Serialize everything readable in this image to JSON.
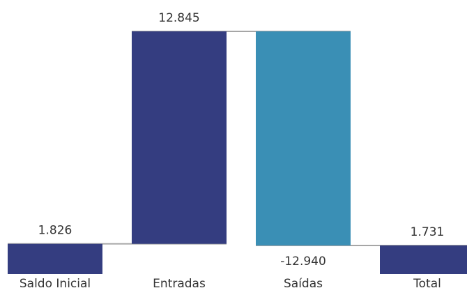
{
  "chart_data": {
    "type": "waterfall",
    "title": "",
    "xlabel": "",
    "ylabel": "",
    "categories": [
      "Saldo Inicial",
      "Entradas",
      "Saídas",
      "Total"
    ],
    "values": [
      1826,
      12845,
      -12940,
      1731
    ],
    "value_labels": [
      "1.826",
      "12.845",
      "-12.940",
      "1.731"
    ],
    "bar_kinds": [
      "total",
      "delta",
      "delta",
      "total"
    ],
    "colors": {
      "increase_total": "#343d80",
      "decrease": "#3a8fb5"
    },
    "ylim": [
      0,
      14671
    ],
    "grid": false,
    "legend": "none"
  }
}
